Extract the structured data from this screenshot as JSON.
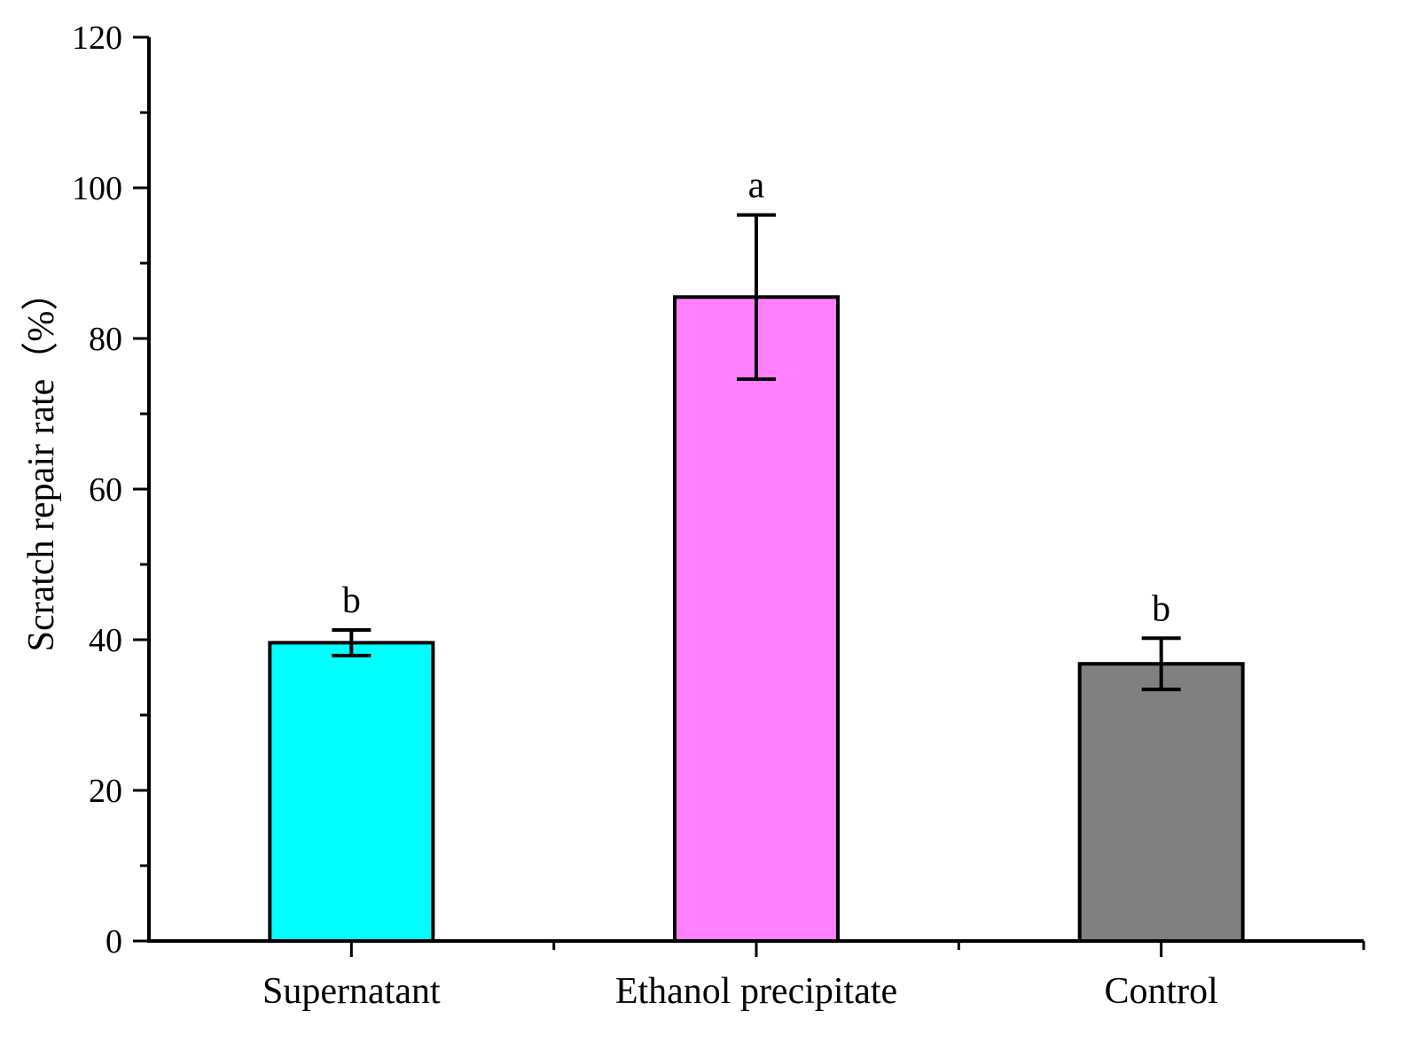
{
  "chart_data": {
    "type": "bar",
    "title": "",
    "xlabel": "",
    "ylabel": "Scratch repair rate（%）",
    "ylim": [
      0,
      120
    ],
    "yticks": [
      0,
      20,
      40,
      60,
      80,
      100,
      120
    ],
    "y_minor_step": 10,
    "grid": false,
    "categories": [
      "Supernatant",
      "Ethanol precipitate",
      "Control"
    ],
    "values": [
      39.6,
      85.5,
      36.8
    ],
    "error_bars": [
      1.7,
      10.9,
      3.4
    ],
    "significance_letters": [
      "b",
      "a",
      "b"
    ],
    "bar_colors": [
      "#00ffff",
      "#ff80ff",
      "#808080"
    ]
  }
}
